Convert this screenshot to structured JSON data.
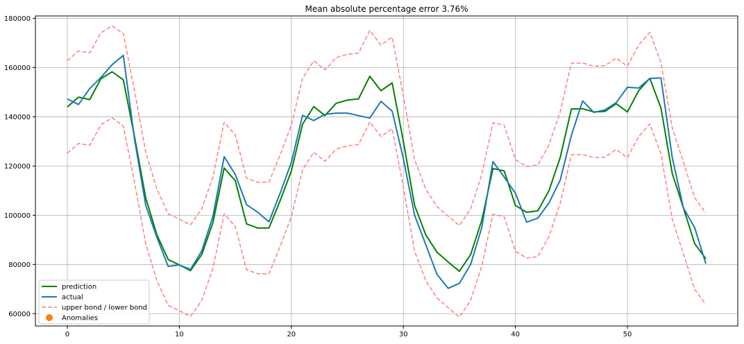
{
  "chart_data": {
    "type": "line",
    "title": "Mean absolute percentage error 3.76%",
    "xlim": [
      -2.85,
      59.85
    ],
    "ylim": [
      55000,
      181000
    ],
    "x_ticks": [
      0,
      10,
      20,
      30,
      40,
      50
    ],
    "x_tick_labels": [
      "0",
      "10",
      "20",
      "30",
      "40",
      "50"
    ],
    "y_ticks": [
      60000,
      80000,
      100000,
      120000,
      140000,
      160000,
      180000
    ],
    "y_tick_labels": [
      "60000",
      "80000",
      "100000",
      "120000",
      "140000",
      "160000",
      "180000"
    ],
    "grid": true,
    "legend_position": "lower-left",
    "x": [
      0,
      1,
      2,
      3,
      4,
      5,
      6,
      7,
      8,
      9,
      10,
      11,
      12,
      13,
      14,
      15,
      16,
      17,
      18,
      19,
      20,
      21,
      22,
      23,
      24,
      25,
      26,
      27,
      28,
      29,
      30,
      31,
      32,
      33,
      34,
      35,
      36,
      37,
      38,
      39,
      40,
      41,
      42,
      43,
      44,
      45,
      46,
      47,
      48,
      49,
      50,
      51,
      52,
      53,
      54,
      55,
      56,
      57
    ],
    "series": [
      {
        "name": "prediction",
        "color": "#008000",
        "style": "solid",
        "values": [
          144000,
          148000,
          147000,
          155500,
          158300,
          155000,
          132000,
          107000,
          92000,
          82000,
          79800,
          77500,
          84000,
          97000,
          119200,
          114000,
          96500,
          94800,
          94800,
          106000,
          118000,
          137000,
          144200,
          140500,
          145500,
          146800,
          147300,
          156500,
          150600,
          153800,
          130000,
          104000,
          92000,
          85000,
          81000,
          77200,
          84000,
          98000,
          119000,
          118000,
          104000,
          101200,
          101800,
          110000,
          123500,
          143200,
          143300,
          142000,
          142200,
          145300,
          142000,
          150600,
          155700,
          143500,
          117000,
          103000,
          88500,
          82300
        ]
      },
      {
        "name": "actual",
        "color": "#1f77b4",
        "style": "solid",
        "values": [
          147300,
          145000,
          151500,
          156000,
          161200,
          165000,
          131000,
          104000,
          91000,
          79200,
          79800,
          78000,
          85500,
          99500,
          123800,
          116500,
          104300,
          101200,
          97300,
          109000,
          121500,
          140600,
          138500,
          141000,
          141500,
          141500,
          140500,
          139500,
          146300,
          142300,
          123000,
          100000,
          88000,
          76000,
          70300,
          72300,
          80000,
          95000,
          121800,
          115500,
          109000,
          97200,
          98800,
          105000,
          114300,
          132500,
          146500,
          141800,
          142800,
          145800,
          152000,
          151700,
          155600,
          155800,
          123500,
          103000,
          95000,
          80300
        ]
      },
      {
        "name": "upper bond / lower bond",
        "color": "#ff7f7f",
        "style": "dashed",
        "values": [
          162800,
          166800,
          166000,
          174200,
          177000,
          173800,
          150600,
          125600,
          110600,
          100600,
          98400,
          96100,
          102600,
          115600,
          137800,
          132600,
          115100,
          113400,
          113400,
          124600,
          136600,
          155600,
          162800,
          159100,
          164100,
          165400,
          165900,
          175100,
          169200,
          172400,
          148600,
          122600,
          110600,
          103600,
          99600,
          95800,
          102600,
          116600,
          137600,
          136600,
          122600,
          119800,
          120400,
          128600,
          142100,
          161800,
          161900,
          160600,
          160800,
          163900,
          160600,
          169200,
          174300,
          162100,
          135600,
          121600,
          107100,
          100900
        ]
      },
      {
        "name": "lower bond",
        "color": "#ff7f7f",
        "style": "dashed",
        "values": [
          125200,
          129200,
          128400,
          136800,
          139600,
          136200,
          113400,
          88400,
          73400,
          63400,
          61200,
          58900,
          65400,
          78400,
          100600,
          95400,
          77900,
          76200,
          76200,
          87400,
          99400,
          118400,
          125600,
          121900,
          126900,
          128200,
          128700,
          137900,
          132000,
          135200,
          111400,
          85400,
          73400,
          66400,
          62400,
          58600,
          65400,
          79400,
          100400,
          99400,
          85400,
          82600,
          83200,
          91400,
          104900,
          124600,
          124700,
          123400,
          123600,
          126700,
          123400,
          132000,
          137100,
          124900,
          98400,
          84400,
          69900,
          63700
        ]
      }
    ],
    "legend": [
      {
        "label": "prediction",
        "marker": "line",
        "color": "#008000"
      },
      {
        "label": "actual",
        "marker": "line",
        "color": "#1f77b4"
      },
      {
        "label": "upper bond / lower bond",
        "marker": "dashed",
        "color": "#ff7f7f"
      },
      {
        "label": "Anomalies",
        "marker": "circle",
        "color": "#ff7f0e"
      }
    ]
  }
}
